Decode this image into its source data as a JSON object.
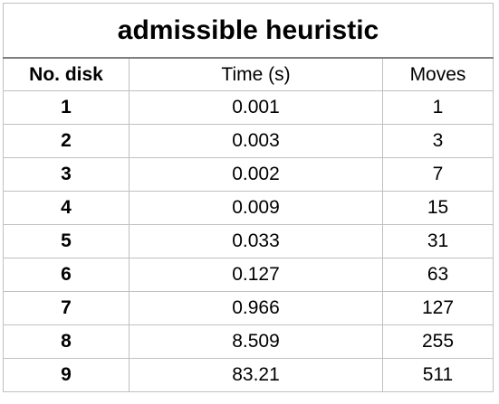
{
  "title": "admissible heuristic",
  "columns": [
    "No. disk",
    "Time (s)",
    "Moves"
  ],
  "rows": [
    {
      "disk": "1",
      "time": "0.001",
      "moves": "1"
    },
    {
      "disk": "2",
      "time": "0.003",
      "moves": "3"
    },
    {
      "disk": "3",
      "time": "0.002",
      "moves": "7"
    },
    {
      "disk": "4",
      "time": "0.009",
      "moves": "15"
    },
    {
      "disk": "5",
      "time": "0.033",
      "moves": "31"
    },
    {
      "disk": "6",
      "time": "0.127",
      "moves": "63"
    },
    {
      "disk": "7",
      "time": "0.966",
      "moves": "127"
    },
    {
      "disk": "8",
      "time": "8.509",
      "moves": "255"
    },
    {
      "disk": "9",
      "time": "83.21",
      "moves": "511"
    }
  ]
}
